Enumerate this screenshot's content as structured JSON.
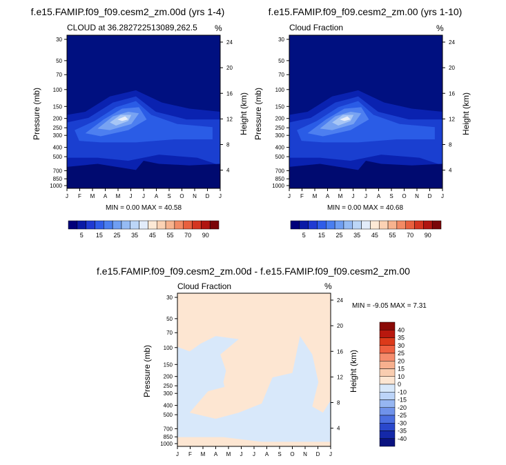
{
  "panels": [
    {
      "title": "f.e15.FAMIP.f09_f09.cesm2_zm.00d (yrs 1-4)",
      "subtitle_left": "CLOUD at 36.282722513089,262.5",
      "subtitle_right": "%",
      "ylabel_left": "Pressure (mb)",
      "ylabel_right": "Height (km)",
      "min_max": "MIN =   0.00 MAX =  40.58"
    },
    {
      "title": "f.e15.FAMIP.f09_f09.cesm2_zm.00 (yrs 1-10)",
      "subtitle_left": "Cloud Fraction",
      "subtitle_right": "%",
      "ylabel_left": "Pressure (mb)",
      "ylabel_right": "Height (km)",
      "min_max": "MIN =   0.00 MAX =  40.68"
    },
    {
      "title": "f.e15.FAMIP.f09_f09.cesm2_zm.00d - f.e15.FAMIP.f09_f09.cesm2_zm.00",
      "subtitle_left": "Cloud Fraction",
      "subtitle_right": "%",
      "ylabel_left": "Pressure (mb)",
      "ylabel_right": "Height (km)",
      "min_max": "MIN =  -9.05 MAX =   7.31"
    }
  ],
  "chart_data": [
    {
      "type": "heatmap",
      "title": "f.e15.FAMIP.f09_f09.cesm2_zm.00d (yrs 1-4)",
      "x_ticks": [
        "J",
        "F",
        "M",
        "A",
        "M",
        "J",
        "J",
        "A",
        "S",
        "O",
        "N",
        "D",
        "J"
      ],
      "y_ticks_pressure": [
        30,
        50,
        70,
        100,
        150,
        200,
        250,
        300,
        400,
        500,
        700,
        850,
        1000
      ],
      "y_ticks_height_km": [
        24,
        20,
        16,
        12,
        8,
        4
      ],
      "xlabel": "",
      "ylabel": "Pressure (mb)",
      "ylabel_right": "Height (km)",
      "units": "%",
      "min": 0.0,
      "max": 40.58,
      "colorbar_labels": [
        5,
        15,
        25,
        35,
        45,
        55,
        70,
        90
      ],
      "colorbar_colors": [
        "#00007a",
        "#0a1aa6",
        "#1f3ad2",
        "#2f5ce8",
        "#4a7ef0",
        "#6f9ef2",
        "#95bbf4",
        "#bcd6f7",
        "#e2ecfa",
        "#fde9d6",
        "#fbd2b4",
        "#f7b38e",
        "#f28a64",
        "#e8603e",
        "#d43520",
        "#b01510",
        "#7a0508"
      ]
    },
    {
      "type": "heatmap",
      "title": "f.e15.FAMIP.f09_f09.cesm2_zm.00 (yrs 1-10)",
      "x_ticks": [
        "J",
        "F",
        "M",
        "A",
        "M",
        "J",
        "J",
        "A",
        "S",
        "O",
        "N",
        "D",
        "J"
      ],
      "y_ticks_pressure": [
        30,
        50,
        70,
        100,
        150,
        200,
        250,
        300,
        400,
        500,
        700,
        850,
        1000
      ],
      "y_ticks_height_km": [
        24,
        20,
        16,
        12,
        8,
        4
      ],
      "xlabel": "",
      "ylabel": "Pressure (mb)",
      "ylabel_right": "Height (km)",
      "units": "%",
      "min": 0.0,
      "max": 40.68,
      "colorbar_labels": [
        5,
        15,
        25,
        35,
        45,
        55,
        70,
        90
      ]
    },
    {
      "type": "heatmap",
      "title": "f.e15.FAMIP.f09_f09.cesm2_zm.00d - f.e15.FAMIP.f09_f09.cesm2_zm.00",
      "x_ticks": [
        "J",
        "F",
        "M",
        "A",
        "M",
        "J",
        "J",
        "A",
        "S",
        "O",
        "N",
        "D",
        "J"
      ],
      "y_ticks_pressure": [
        30,
        50,
        70,
        100,
        150,
        200,
        250,
        300,
        400,
        500,
        700,
        850,
        1000
      ],
      "y_ticks_height_km": [
        24,
        20,
        16,
        12,
        8,
        4
      ],
      "xlabel": "",
      "ylabel": "Pressure (mb)",
      "ylabel_right": "Height (km)",
      "units": "%",
      "min": -9.05,
      "max": 7.31,
      "colorbar_labels": [
        40,
        35,
        30,
        25,
        20,
        15,
        10,
        0,
        -10,
        -15,
        -20,
        -25,
        -30,
        -35,
        -40
      ],
      "colorbar_colors": [
        "#8a0a06",
        "#b8180e",
        "#dc3a1a",
        "#ef6040",
        "#f58c6c",
        "#f7b08e",
        "#f9cdb0",
        "#fde6d2",
        "#d8e8fa",
        "#bcd4f8",
        "#96b6f2",
        "#6f92ea",
        "#4a6ee0",
        "#2a48cc",
        "#1428a8",
        "#0a1280"
      ]
    }
  ]
}
